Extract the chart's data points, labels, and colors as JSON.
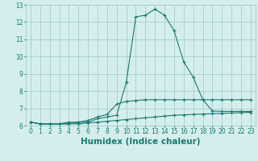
{
  "xlabel": "Humidex (Indice chaleur)",
  "x_values": [
    0,
    1,
    2,
    3,
    4,
    5,
    6,
    7,
    8,
    9,
    10,
    11,
    12,
    13,
    14,
    15,
    16,
    17,
    18,
    19,
    20,
    21,
    22,
    23
  ],
  "line1": [
    6.2,
    6.1,
    6.1,
    6.1,
    6.1,
    6.2,
    6.2,
    6.4,
    6.5,
    6.6,
    8.5,
    12.3,
    12.4,
    12.75,
    12.4,
    11.5,
    9.7,
    8.8,
    7.5,
    6.85,
    6.82,
    6.82,
    6.82,
    6.82
  ],
  "line2": [
    6.2,
    6.1,
    6.1,
    6.1,
    6.2,
    6.2,
    6.3,
    6.5,
    6.65,
    7.25,
    7.4,
    7.45,
    7.5,
    7.5,
    7.5,
    7.5,
    7.5,
    7.5,
    7.5,
    7.5,
    7.5,
    7.5,
    7.5,
    7.5
  ],
  "line3": [
    6.2,
    6.1,
    6.1,
    6.1,
    6.1,
    6.1,
    6.15,
    6.2,
    6.25,
    6.3,
    6.35,
    6.4,
    6.45,
    6.5,
    6.55,
    6.6,
    6.62,
    6.65,
    6.67,
    6.69,
    6.71,
    6.73,
    6.75,
    6.77
  ],
  "line_color": "#1a7a6e",
  "bg_color": "#d4eeee",
  "grid_color": "#aacccc",
  "ylim": [
    6.0,
    13.0
  ],
  "xlim_min": -0.5,
  "xlim_max": 23.5,
  "yticks": [
    6,
    7,
    8,
    9,
    10,
    11,
    12,
    13
  ],
  "xticks": [
    0,
    1,
    2,
    3,
    4,
    5,
    6,
    7,
    8,
    9,
    10,
    11,
    12,
    13,
    14,
    15,
    16,
    17,
    18,
    19,
    20,
    21,
    22,
    23
  ],
  "tick_fontsize": 5.5,
  "xlabel_fontsize": 7.5
}
